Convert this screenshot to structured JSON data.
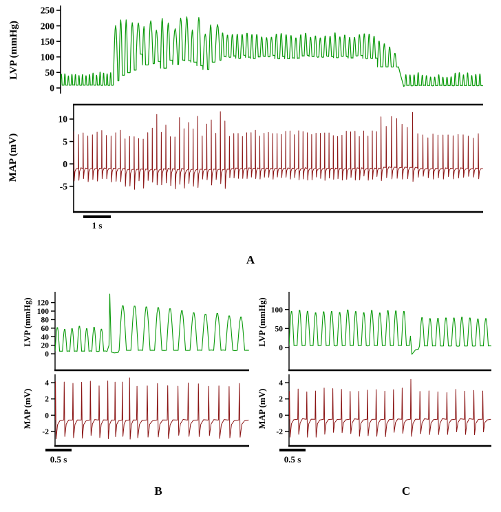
{
  "figure": {
    "background": "#ffffff",
    "panel_labels": {
      "a": "A",
      "b": "B",
      "c": "C"
    },
    "scalebars": {
      "a": "1 s",
      "b": "0.5 s",
      "c": "0.5 s"
    }
  },
  "chart_data": [
    {
      "id": "a-lvp",
      "type": "line",
      "panel": "A",
      "ylabel": "LVP (mmHg)",
      "xlabel": "",
      "x_scalebar": "1 s",
      "color": "#0a9a0a",
      "ylim": [
        -18,
        261
      ],
      "yticks": [
        0,
        50,
        100,
        150,
        200,
        250
      ],
      "description": "Left ventricular pressure: low-amplitude baseline pulses (~10-50 mmHg), abrupt onset of tachyarrhythmia episode with chaotic large pressure swings (60-240 mmHg) settling to regular fast oscillations (~100-175 mmHg), then termination back to baseline pulses.",
      "segments": [
        {
          "type": "lvp",
          "t0": 0.0,
          "t1": 0.125,
          "n": 15,
          "base": 9,
          "peak": 45,
          "jitter": 7,
          "duty": 0.45,
          "noise": 3
        },
        {
          "type": "chaos",
          "t0": 0.125,
          "t1": 0.165,
          "n": 3,
          "baseMin": 20,
          "baseMax": 60,
          "peakMin": 200,
          "peakMax": 238
        },
        {
          "type": "chaos",
          "t0": 0.165,
          "t1": 0.38,
          "n": 15,
          "baseMin": 55,
          "baseMax": 110,
          "peakMin": 165,
          "peakMax": 235
        },
        {
          "type": "lvp",
          "t0": 0.38,
          "t1": 0.75,
          "n": 32,
          "base": 100,
          "peak": 170,
          "jitter": 9,
          "duty": 0.6,
          "noise": 4,
          "baseJitter": 6
        },
        {
          "type": "lvp",
          "t0": 0.75,
          "t1": 0.8,
          "n": 4,
          "base": 68,
          "peak": 150,
          "peak2": 118,
          "jitter": 8,
          "duty": 0.6
        },
        {
          "type": "points",
          "pts": [
            [
              0.805,
              40
            ],
            [
              0.812,
              5
            ]
          ]
        },
        {
          "type": "lvp",
          "t0": 0.815,
          "t1": 1.0,
          "n": 19,
          "base": 8,
          "peak": 42,
          "jitter": 8,
          "duty": 0.45,
          "noise": 3
        }
      ]
    },
    {
      "id": "a-map",
      "type": "line",
      "panel": "A",
      "ylabel": "MAP (mV)",
      "xlabel": "",
      "x_scalebar": "1 s",
      "color": "#8b1515",
      "ylim": [
        -9.5,
        12
      ],
      "yticks": [
        -5,
        0,
        5,
        10
      ],
      "description": "Monophasic action potential: regular spikes (~-3.5 to 7 mV) with denser irregular taller spikes (up to ~12 mV) during the arrhythmia episode, then return to regular rhythm.",
      "segments": [
        {
          "type": "map",
          "t0": 0.0,
          "t1": 0.125,
          "n": 11,
          "base": -1,
          "peak": 7,
          "jitter": 0.8,
          "under": -3.5,
          "underJitter": 0.6
        },
        {
          "type": "map",
          "t0": 0.125,
          "t1": 0.38,
          "n": 23,
          "base": -1.2,
          "peak": 8.5,
          "jitter": 3.2,
          "under": -4.5,
          "underJitter": 1.2,
          "baseNoise": 0.6
        },
        {
          "type": "map",
          "t0": 0.38,
          "t1": 0.75,
          "n": 35,
          "base": -1,
          "peak": 6.8,
          "jitter": 0.7,
          "under": -3.2,
          "underJitter": 0.5
        },
        {
          "type": "map",
          "t0": 0.75,
          "t1": 0.84,
          "n": 7,
          "base": -0.8,
          "peak": 9.5,
          "jitter": 2.5,
          "under": -3.5,
          "underJitter": 0.5
        },
        {
          "type": "map",
          "t0": 0.84,
          "t1": 1.0,
          "n": 13,
          "base": -1,
          "peak": 6.3,
          "jitter": 0.6,
          "under": -3,
          "underJitter": 0.4
        }
      ]
    },
    {
      "id": "b-lvp",
      "type": "line",
      "panel": "B",
      "ylabel": "LVP (mmHg)",
      "xlabel": "",
      "x_scalebar": "0.5 s",
      "color": "#0a9a0a",
      "ylim": [
        -16,
        142
      ],
      "yticks": [
        0,
        20,
        40,
        60,
        80,
        100,
        120
      ],
      "description": "Regular pressure beats (~0-65 mmHg), a premature tall beat (~140 mmHg) followed by a brief pause, then resumed larger beats (~115 mmHg) slowly decaying toward ~90 mmHg.",
      "segments": [
        {
          "type": "lvp",
          "t0": 0.0,
          "t1": 0.265,
          "n": 7,
          "base": 6,
          "peak": 62,
          "jitter": 4,
          "duty": 0.62,
          "noise": 2
        },
        {
          "type": "points",
          "pts": [
            [
              0.268,
              6
            ],
            [
              0.278,
              20
            ],
            [
              0.282,
              140
            ],
            [
              0.29,
              4
            ],
            [
              0.305,
              2
            ],
            [
              0.325,
              3
            ]
          ]
        },
        {
          "type": "lvp",
          "t0": 0.33,
          "t1": 1.0,
          "n": 11,
          "base": 8,
          "peak": 116,
          "peak2": 88,
          "jitter": 3,
          "duty": 0.62,
          "noise": 2
        }
      ]
    },
    {
      "id": "b-map",
      "type": "line",
      "panel": "B",
      "ylabel": "MAP (mV)",
      "xlabel": "",
      "x_scalebar": "0.5 s",
      "color": "#8b1515",
      "ylim": [
        -3.27,
        4.85
      ],
      "yticks": [
        -2,
        0,
        2,
        4
      ],
      "description": "Regular MAP spikes (~-2.6 to 4 mV) with a transient faster cluster around the premature beat.",
      "segments": [
        {
          "type": "map",
          "t0": 0.0,
          "t1": 0.27,
          "n": 6,
          "base": -0.6,
          "peak": 3.9,
          "jitter": 0.3,
          "under": -2.7,
          "underJitter": 0.3,
          "baseNoise": 0.2
        },
        {
          "type": "map",
          "t0": 0.27,
          "t1": 0.42,
          "n": 4,
          "base": -0.6,
          "peak": 4.2,
          "jitter": 0.4,
          "under": -2.9,
          "underJitter": 0.3,
          "baseNoise": 0.2
        },
        {
          "type": "map",
          "t0": 0.42,
          "t1": 1.0,
          "n": 11,
          "base": -0.6,
          "peak": 3.7,
          "jitter": 0.3,
          "under": -2.6,
          "underJitter": 0.3,
          "baseNoise": 0.2
        }
      ]
    },
    {
      "id": "c-lvp",
      "type": "line",
      "panel": "C",
      "ylabel": "LVP (mmHg)",
      "xlabel": "",
      "x_scalebar": "0.5 s",
      "color": "#0a9a0a",
      "ylim": [
        -34.5,
        143
      ],
      "yticks": [
        0,
        50,
        100
      ],
      "description": "Regular pressure beats (~0-100 mmHg), a transient negative dip (~-18 mmHg) with a short pause, then resumed slightly smaller beats (~80 mmHg).",
      "segments": [
        {
          "type": "lvp",
          "t0": 0.0,
          "t1": 0.595,
          "n": 15,
          "base": 5,
          "peak": 97,
          "jitter": 5,
          "duty": 0.62,
          "noise": 2
        },
        {
          "type": "points",
          "pts": [
            [
              0.6,
              30
            ],
            [
              0.607,
              -18
            ],
            [
              0.625,
              -6
            ],
            [
              0.64,
              -4
            ]
          ]
        },
        {
          "type": "lvp",
          "t0": 0.645,
          "t1": 1.0,
          "n": 9,
          "base": 4,
          "peak": 80,
          "jitter": 4,
          "duty": 0.62,
          "noise": 2
        }
      ]
    },
    {
      "id": "c-map",
      "type": "line",
      "panel": "C",
      "ylabel": "MAP (mV)",
      "xlabel": "",
      "x_scalebar": "0.5 s",
      "color": "#8b1515",
      "ylim": [
        -3.27,
        4.85
      ],
      "yticks": [
        -2,
        0,
        2,
        4
      ],
      "description": "Regular MAP spikes (~-2.4 to 3 mV) with one taller spike (~4.4 mV) coinciding with the pressure dip.",
      "segments": [
        {
          "type": "map",
          "t0": 0.0,
          "t1": 0.6,
          "n": 14,
          "base": -0.5,
          "peak": 3.1,
          "jitter": 0.25,
          "under": -2.4,
          "underJitter": 0.3,
          "baseNoise": 0.2
        },
        {
          "type": "map",
          "t0": 0.6,
          "t1": 0.645,
          "n": 1,
          "base": -0.5,
          "peak": 4.4,
          "jitter": 0,
          "under": -2.6,
          "baseNoise": 0.2
        },
        {
          "type": "map",
          "t0": 0.645,
          "t1": 1.0,
          "n": 8,
          "base": -0.5,
          "peak": 3.0,
          "jitter": 0.25,
          "under": -2.3,
          "underJitter": 0.3,
          "baseNoise": 0.2
        }
      ]
    }
  ]
}
